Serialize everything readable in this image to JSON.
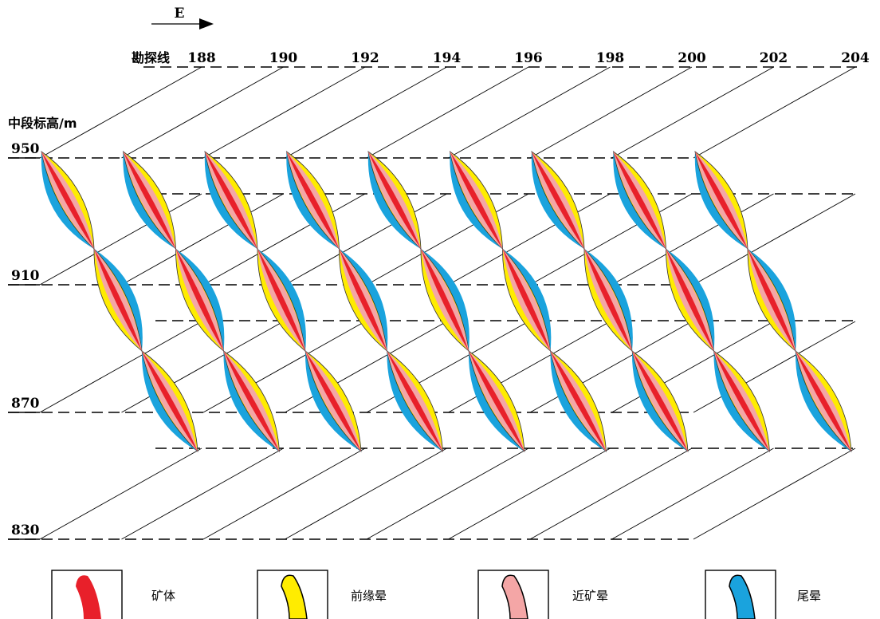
{
  "direction": "E",
  "line_label": "勘探线",
  "lines": [
    "188",
    "190",
    "192",
    "194",
    "196",
    "198",
    "200",
    "202",
    "204"
  ],
  "elevation_label": "中段标高/m",
  "elevations": [
    "950",
    "910",
    "870",
    "830"
  ],
  "legend": [
    "矿体",
    "前缘晕",
    "近矿晕",
    "尾晕"
  ]
}
